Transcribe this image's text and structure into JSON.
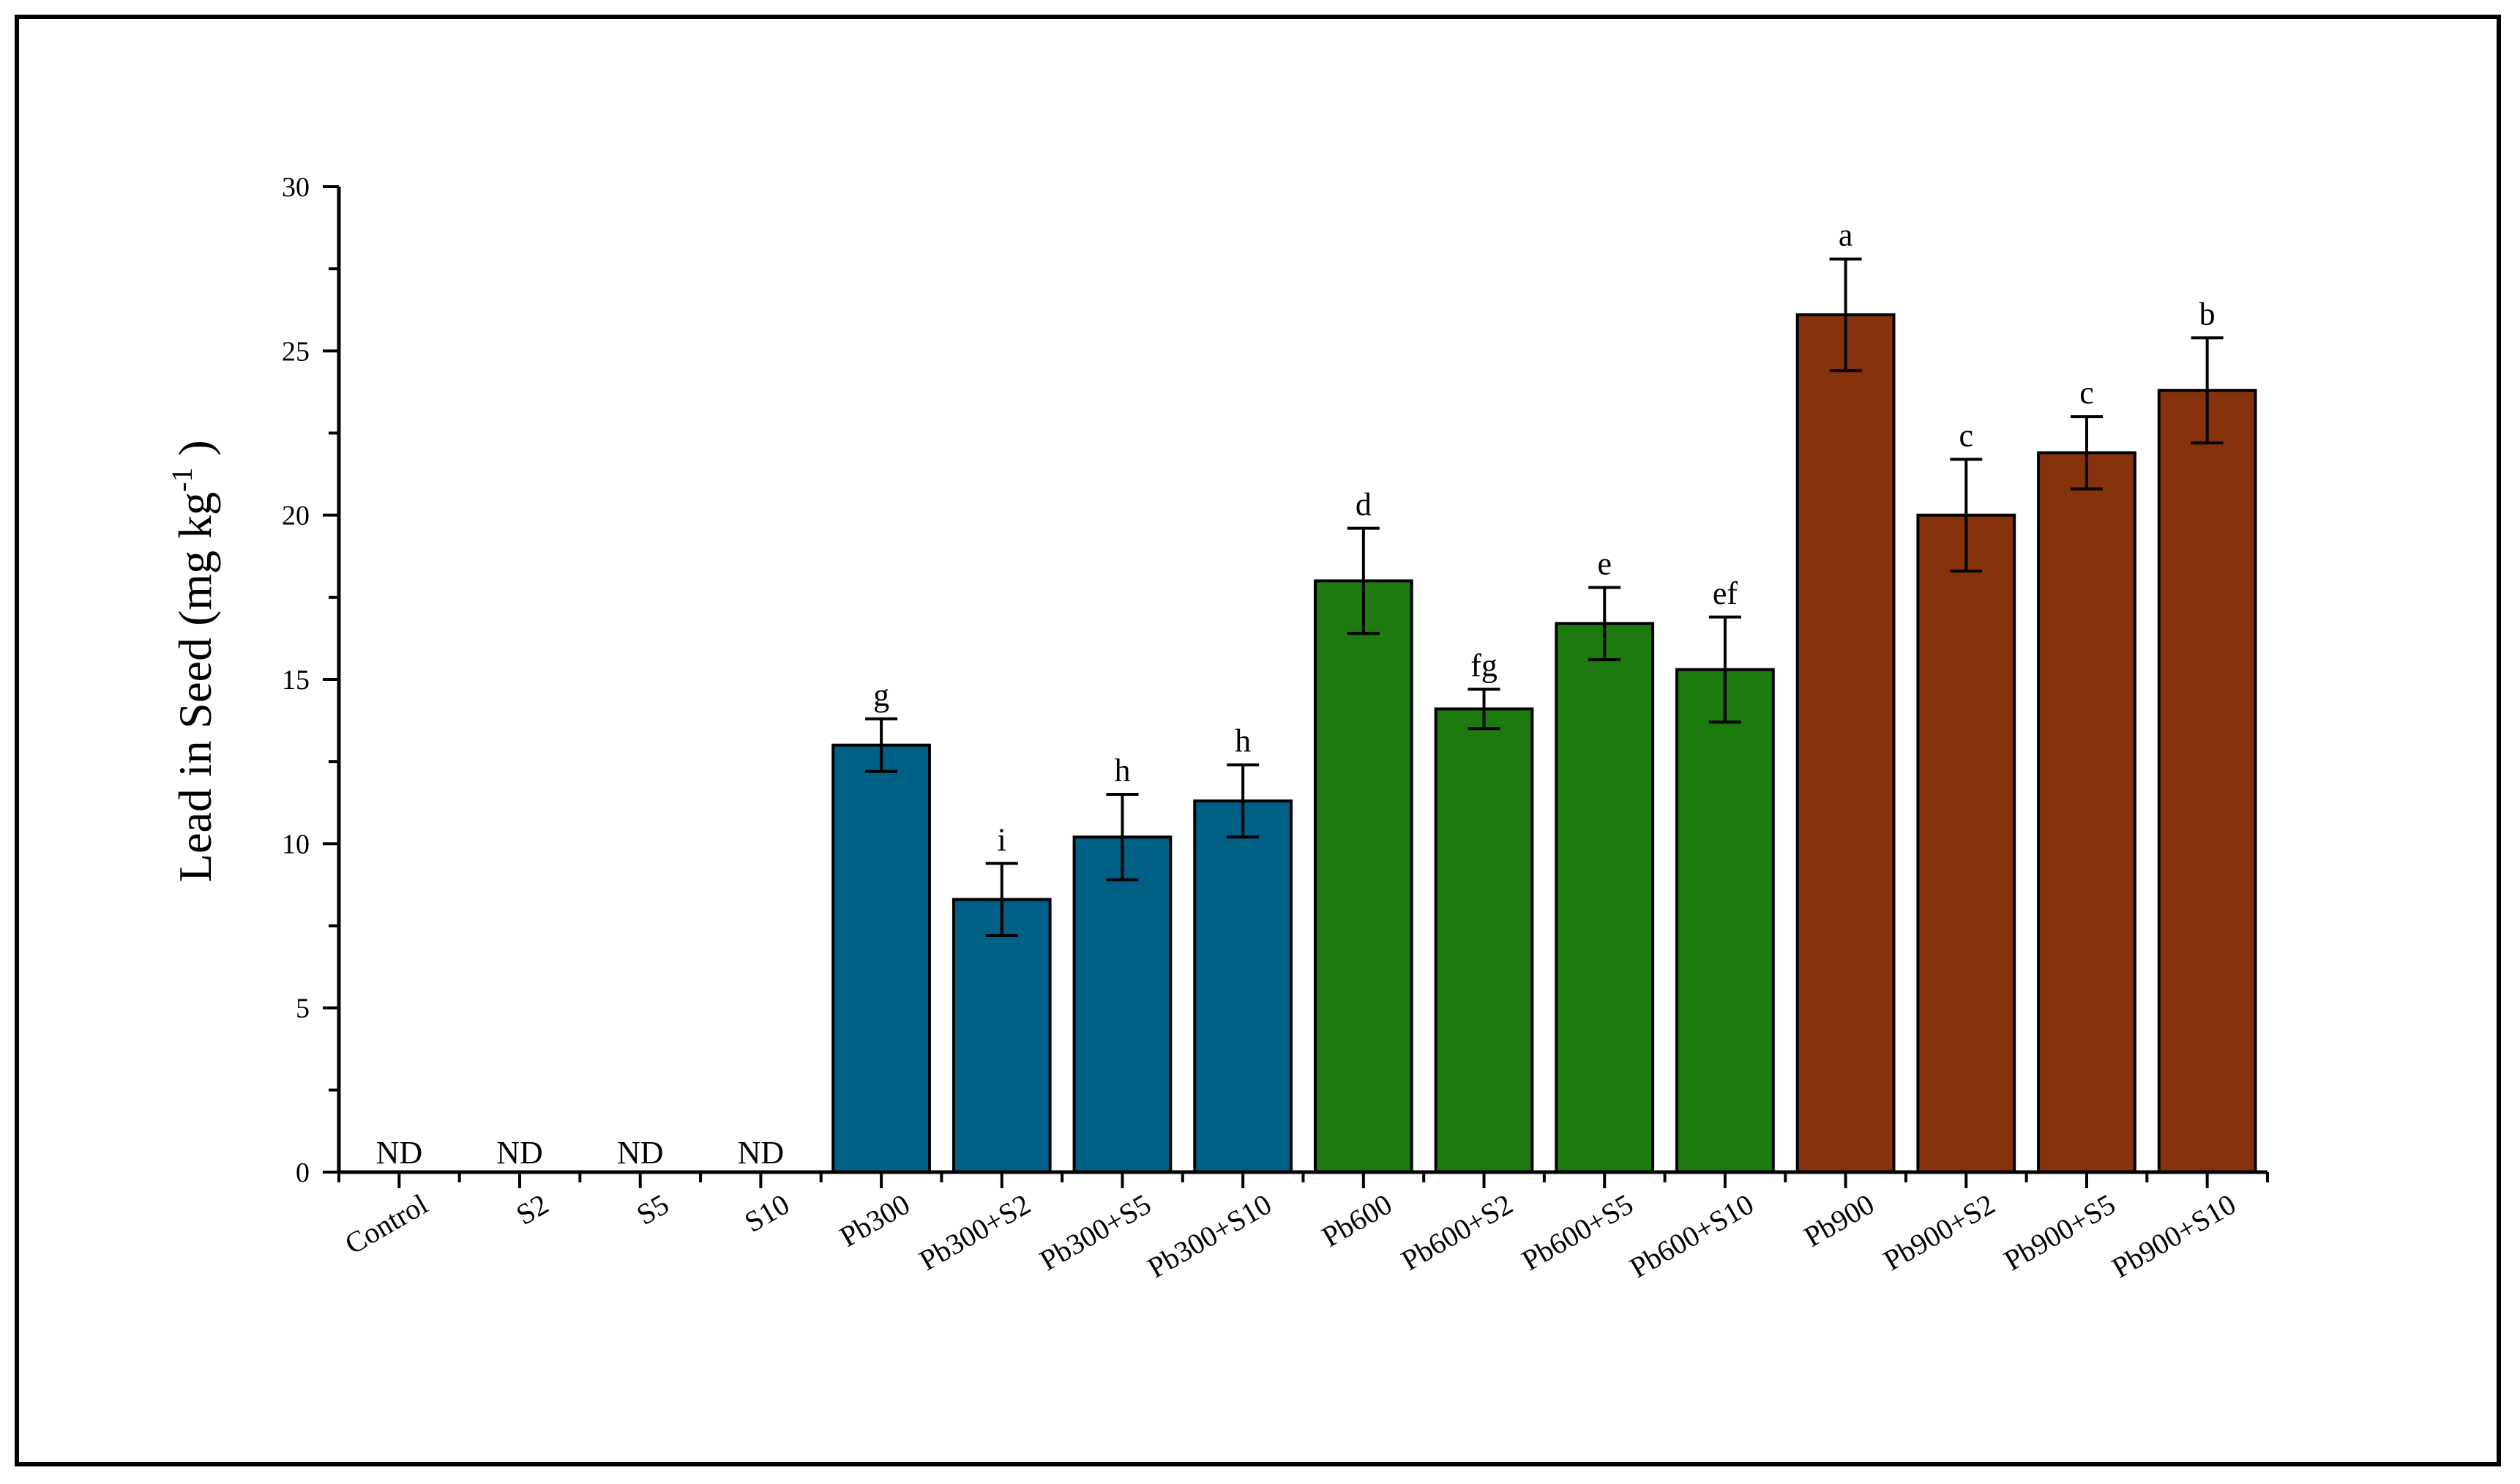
{
  "chart_data": {
    "type": "bar",
    "title": "",
    "xlabel": "",
    "ylabel": "Lead in Seed (mg kg",
    "ylabel_unit_suffix": " )",
    "ylabel_superscript": "-1",
    "ylim": [
      0,
      30
    ],
    "yticks": [
      0,
      5,
      10,
      15,
      20,
      25,
      30
    ],
    "categories": [
      "Control",
      "S2",
      "S5",
      "S10",
      "Pb300",
      "Pb300+S2",
      "Pb300+S5",
      "Pb300+S10",
      "Pb600",
      "Pb600+S2",
      "Pb600+S5",
      "Pb600+S10",
      "Pb900",
      "Pb900+S2",
      "Pb900+S5",
      "Pb900+S10"
    ],
    "values": [
      null,
      null,
      null,
      null,
      13.0,
      8.3,
      10.2,
      11.3,
      18.0,
      14.1,
      16.7,
      15.3,
      26.1,
      20.0,
      21.9,
      23.8
    ],
    "errors": [
      null,
      null,
      null,
      null,
      0.8,
      1.1,
      1.3,
      1.1,
      1.6,
      0.6,
      1.1,
      1.6,
      1.7,
      1.7,
      1.1,
      1.6
    ],
    "significance": [
      "",
      "",
      "",
      "",
      "g",
      "i",
      "h",
      "h",
      "d",
      "fg",
      "e",
      "ef",
      "a",
      "c",
      "c",
      "b"
    ],
    "not_detected_label": "ND",
    "groups": [
      {
        "name": "Control",
        "color": "#ffffff"
      },
      {
        "name": "Pb300",
        "color": "#005f84"
      },
      {
        "name": "Pb600",
        "color": "#1c7a0e"
      },
      {
        "name": "Pb900",
        "color": "#86320d"
      }
    ],
    "bar_group": [
      0,
      0,
      0,
      0,
      1,
      1,
      1,
      1,
      2,
      2,
      2,
      2,
      3,
      3,
      3,
      3
    ]
  }
}
